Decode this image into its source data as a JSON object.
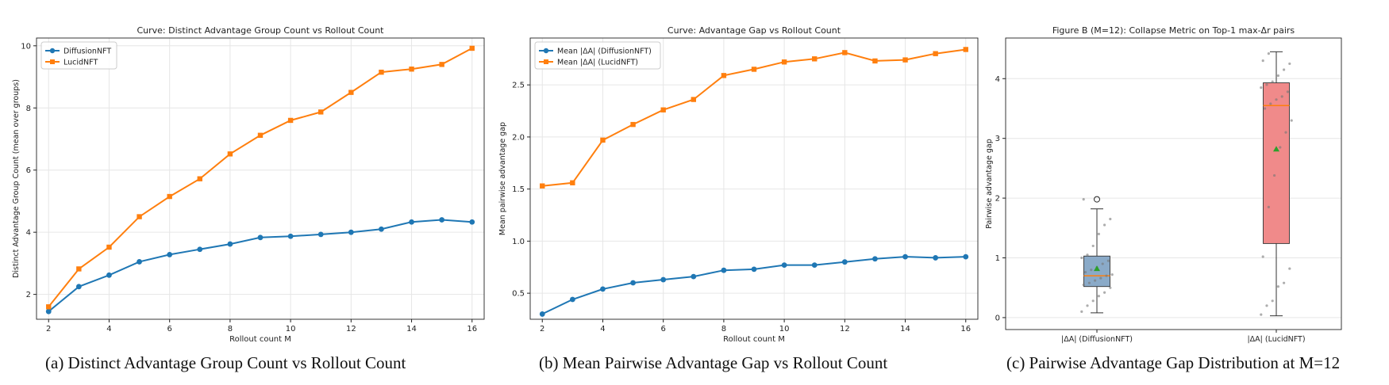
{
  "chart_data": [
    {
      "type": "line",
      "title": "Curve: Distinct Advantage Group Count vs Rollout Count",
      "xlabel": "Rollout count M",
      "ylabel": "Distinct Advantage Group Count (mean over groups)",
      "xlim": [
        1.6,
        16.4
      ],
      "ylim": [
        1.2,
        10.25
      ],
      "xticks": [
        2,
        4,
        6,
        8,
        10,
        12,
        14,
        16
      ],
      "yticks": [
        2,
        4,
        6,
        8,
        10
      ],
      "legend_position": "top-left",
      "caption": "(a) Distinct Advantage Group Count vs Rollout Count",
      "x": [
        2,
        3,
        4,
        5,
        6,
        7,
        8,
        9,
        10,
        11,
        12,
        13,
        14,
        15,
        16
      ],
      "series": [
        {
          "name": "DiffusionNFT",
          "color": "#1f77b4",
          "marker": "circle",
          "values": [
            1.45,
            2.25,
            2.62,
            3.05,
            3.28,
            3.45,
            3.62,
            3.83,
            3.87,
            3.93,
            4.0,
            4.1,
            4.33,
            4.4,
            4.33
          ]
        },
        {
          "name": "LucidNFT",
          "color": "#ff7f0e",
          "marker": "square",
          "values": [
            1.6,
            2.82,
            3.52,
            4.5,
            5.15,
            5.72,
            6.52,
            7.12,
            7.6,
            7.87,
            8.5,
            9.15,
            9.25,
            9.4,
            9.92
          ]
        }
      ]
    },
    {
      "type": "line",
      "title": "Curve: Advantage Gap vs Rollout Count",
      "xlabel": "Rollout count M",
      "ylabel": "Mean pairwise advantage gap",
      "xlim": [
        1.6,
        16.4
      ],
      "ylim": [
        0.25,
        2.95
      ],
      "xticks": [
        2,
        4,
        6,
        8,
        10,
        12,
        14,
        16
      ],
      "yticks": [
        0.5,
        1.0,
        1.5,
        2.0,
        2.5
      ],
      "ytick_labels": [
        "0.5",
        "1.0",
        "1.5",
        "2.0",
        "2.5"
      ],
      "legend_position": "top-left",
      "caption": "(b) Mean Pairwise Advantage Gap vs Rollout Count",
      "x": [
        2,
        3,
        4,
        5,
        6,
        7,
        8,
        9,
        10,
        11,
        12,
        13,
        14,
        15,
        16
      ],
      "series": [
        {
          "name": "Mean |ΔA| (DiffusionNFT)",
          "color": "#1f77b4",
          "marker": "circle",
          "values": [
            0.3,
            0.44,
            0.54,
            0.6,
            0.63,
            0.66,
            0.72,
            0.73,
            0.77,
            0.77,
            0.8,
            0.83,
            0.85,
            0.84,
            0.85
          ]
        },
        {
          "name": "Mean |ΔA| (LucidNFT)",
          "color": "#ff7f0e",
          "marker": "square",
          "values": [
            1.53,
            1.56,
            1.97,
            2.12,
            2.26,
            2.36,
            2.59,
            2.65,
            2.72,
            2.75,
            2.81,
            2.73,
            2.74,
            2.8,
            2.84
          ]
        }
      ]
    },
    {
      "type": "box",
      "title": "Figure B (M=12): Collapse Metric on Top-1 max-Δr pairs",
      "xlabel": "",
      "ylabel": "Pairwise advantage gap",
      "ylim": [
        -0.2,
        4.68
      ],
      "yticks": [
        0,
        1,
        2,
        3,
        4
      ],
      "caption": "(c) Pairwise Advantage Gap Distribution at M=12",
      "boxes": [
        {
          "label": "|ΔA| (DiffusionNFT)",
          "color": "#8aaac8",
          "whisker_low": 0.08,
          "q1": 0.52,
          "median": 0.7,
          "q3": 1.03,
          "whisker_high": 1.82,
          "mean": 0.82,
          "outliers": [
            1.98
          ],
          "points": [
            0.1,
            0.2,
            0.28,
            0.36,
            0.42,
            0.5,
            0.55,
            0.58,
            0.62,
            0.66,
            0.7,
            0.72,
            0.76,
            0.8,
            0.84,
            0.9,
            0.95,
            1.0,
            1.05,
            1.2,
            1.4,
            1.55,
            1.65,
            1.98
          ]
        },
        {
          "label": "|ΔA| (LucidNFT)",
          "color": "#f08a8a",
          "whisker_low": 0.03,
          "q1": 1.24,
          "median": 3.55,
          "q3": 3.93,
          "whisker_high": 4.45,
          "mean": 2.82,
          "outliers": [],
          "points": [
            0.05,
            0.2,
            0.28,
            0.52,
            0.58,
            0.82,
            1.02,
            1.85,
            2.38,
            2.85,
            3.1,
            3.3,
            3.5,
            3.58,
            3.65,
            3.7,
            3.78,
            3.85,
            3.9,
            3.95,
            4.05,
            4.15,
            4.25,
            4.3,
            4.42
          ]
        }
      ]
    }
  ]
}
